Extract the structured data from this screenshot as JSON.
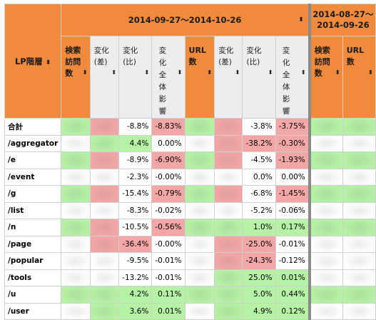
{
  "header": {
    "lp_label": "LP階層",
    "period_current": "2014-09-27〜2014-10-26",
    "period_previous_line1": "2014-08-27〜",
    "period_previous_line2": "2014-09-26",
    "sort_glyph": "⬍",
    "columns": {
      "search_visits": "検索訪問数",
      "change_diff": "変化(差)",
      "change_ratio": "変化(比)",
      "change_total_impact": "変化全体影響",
      "url_count": "URL数",
      "url_change_diff": "変化(差)",
      "url_change_ratio": "変化(比)",
      "url_change_total_impact": "変化全体影響",
      "prev_search_visits": "検索訪問数",
      "prev_url_count": "URL数"
    }
  },
  "colors": {
    "header_orange": "#f08a3c",
    "header_light": "#ededed",
    "positive_green": "#b5f2a5",
    "negative_red": "#f3a6a6"
  },
  "rows": [
    {
      "label": "合計",
      "ratio": "-8.8%",
      "impact": "-8.83%",
      "url_ratio": "-3.8%",
      "url_impact": "-3.75%"
    },
    {
      "label": "/aggregator",
      "ratio": "4.4%",
      "impact": "0.00%",
      "url_ratio": "-38.2%",
      "url_impact": "-0.30%"
    },
    {
      "label": "/e",
      "ratio": "-8.9%",
      "impact": "-6.90%",
      "url_ratio": "-4.5%",
      "url_impact": "-1.93%"
    },
    {
      "label": "/event",
      "ratio": "-2.3%",
      "impact": "-0.00%",
      "url_ratio": "0.0%",
      "url_impact": "0.00%"
    },
    {
      "label": "/g",
      "ratio": "-15.4%",
      "impact": "-0.79%",
      "url_ratio": "-6.8%",
      "url_impact": "-1.45%"
    },
    {
      "label": "/list",
      "ratio": "-8.3%",
      "impact": "-0.02%",
      "url_ratio": "-5.2%",
      "url_impact": "-0.06%"
    },
    {
      "label": "/n",
      "ratio": "-10.5%",
      "impact": "-0.56%",
      "url_ratio": "1.0%",
      "url_impact": "0.17%"
    },
    {
      "label": "/page",
      "ratio": "-36.4%",
      "impact": "-0.00%",
      "url_ratio": "-25.0%",
      "url_impact": "-0.01%"
    },
    {
      "label": "/popular",
      "ratio": "-9.5%",
      "impact": "-0.01%",
      "url_ratio": "-24.3%",
      "url_impact": "-0.12%"
    },
    {
      "label": "/tools",
      "ratio": "-13.2%",
      "impact": "-0.01%",
      "url_ratio": "25.0%",
      "url_impact": "0.01%"
    },
    {
      "label": "/u",
      "ratio": "4.2%",
      "impact": "0.11%",
      "url_ratio": "5.0%",
      "url_impact": "0.44%"
    },
    {
      "label": "/user",
      "ratio": "3.6%",
      "impact": "0.01%",
      "url_ratio": "4.9%",
      "url_impact": "0.12%"
    }
  ]
}
